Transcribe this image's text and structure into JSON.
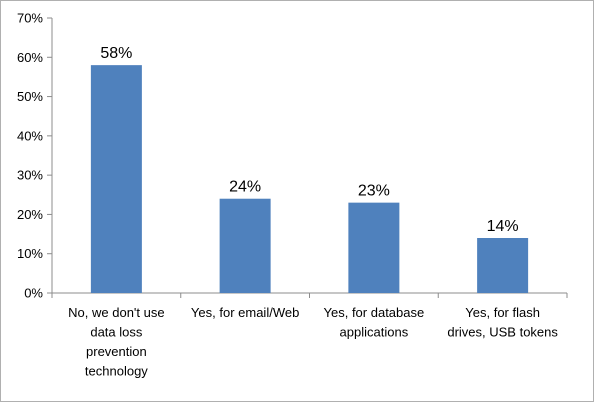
{
  "chart_data": {
    "type": "bar",
    "categories": [
      [
        "No, we don't use",
        "data loss",
        "prevention",
        "technology"
      ],
      [
        "Yes, for email/Web"
      ],
      [
        "Yes, for database",
        "applications"
      ],
      [
        "Yes, for flash",
        "drives, USB tokens"
      ]
    ],
    "values": [
      58,
      24,
      23,
      14
    ],
    "data_labels": [
      "58%",
      "24%",
      "23%",
      "14%"
    ],
    "yticks": [
      "0%",
      "10%",
      "20%",
      "30%",
      "40%",
      "50%",
      "60%",
      "70%"
    ],
    "ylim": [
      0,
      70
    ],
    "grid": false,
    "legend": "none",
    "bar_color": "#4f81bd",
    "axis_color": "#8c8c8c"
  }
}
